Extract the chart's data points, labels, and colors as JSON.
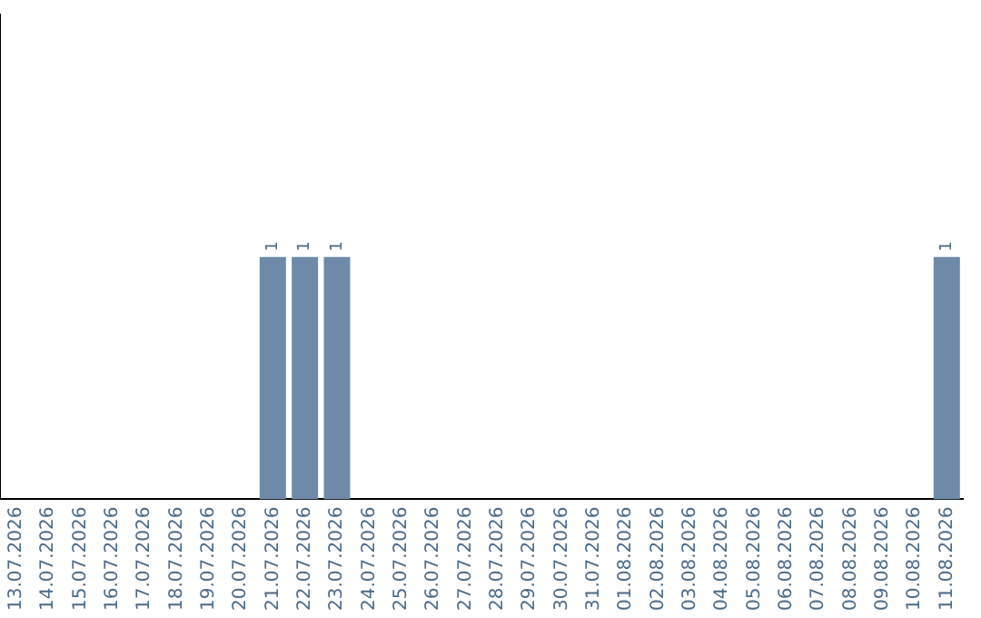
{
  "chart_data": {
    "type": "bar",
    "categories": [
      "13.07.2026",
      "14.07.2026",
      "15.07.2026",
      "16.07.2026",
      "17.07.2026",
      "18.07.2026",
      "19.07.2026",
      "20.07.2026",
      "21.07.2026",
      "22.07.2026",
      "23.07.2026",
      "24.07.2026",
      "25.07.2026",
      "26.07.2026",
      "27.07.2026",
      "28.07.2026",
      "29.07.2026",
      "30.07.2026",
      "31.07.2026",
      "01.08.2026",
      "02.08.2026",
      "03.08.2026",
      "04.08.2026",
      "05.08.2026",
      "06.08.2026",
      "07.08.2026",
      "08.08.2026",
      "09.08.2026",
      "10.08.2026",
      "11.08.2026"
    ],
    "values": [
      0,
      0,
      0,
      0,
      0,
      0,
      0,
      0,
      1,
      1,
      1,
      0,
      0,
      0,
      0,
      0,
      0,
      0,
      0,
      0,
      0,
      0,
      0,
      0,
      0,
      0,
      0,
      0,
      0,
      1
    ],
    "value_labels": [
      null,
      null,
      null,
      null,
      null,
      null,
      null,
      null,
      "1",
      "1",
      "1",
      null,
      null,
      null,
      null,
      null,
      null,
      null,
      null,
      null,
      null,
      null,
      null,
      null,
      null,
      null,
      null,
      null,
      null,
      "1"
    ],
    "color": "#6d8ba8",
    "ylim": [
      0,
      2
    ],
    "tick_labels": "x",
    "grid": false,
    "legend": false
  }
}
